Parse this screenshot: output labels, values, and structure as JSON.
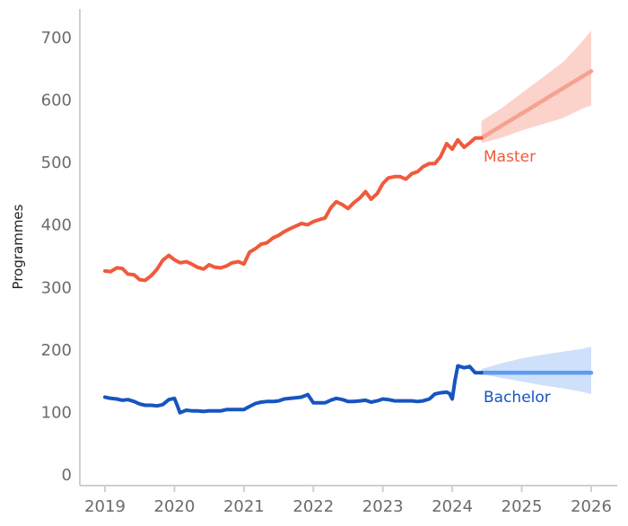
{
  "chart_data": {
    "type": "line",
    "title": "",
    "xlabel": "",
    "ylabel": "Programmes",
    "xlim": [
      2018.85,
      2026.25
    ],
    "ylim": [
      0,
      700
    ],
    "x_ticks": [
      "2019",
      "2020",
      "2021",
      "2022",
      "2023",
      "2024",
      "2025",
      "2026"
    ],
    "y_ticks": [
      "0",
      "100",
      "200",
      "300",
      "400",
      "500",
      "600",
      "700"
    ],
    "grid": false,
    "legend": "none",
    "series": [
      {
        "name": "Master",
        "color": "#f05a3c",
        "forecast_color": "#f5a290",
        "band_color": "#fbd3cb",
        "x": [
          2019.0,
          2019.08,
          2019.17,
          2019.25,
          2019.33,
          2019.42,
          2019.5,
          2019.58,
          2019.67,
          2019.75,
          2019.83,
          2019.92,
          2020.0,
          2020.08,
          2020.17,
          2020.25,
          2020.33,
          2020.42,
          2020.5,
          2020.58,
          2020.67,
          2020.75,
          2020.83,
          2020.92,
          2021.0,
          2021.08,
          2021.17,
          2021.25,
          2021.33,
          2021.42,
          2021.5,
          2021.58,
          2021.67,
          2021.75,
          2021.83,
          2021.92,
          2022.0,
          2022.08,
          2022.17,
          2022.25,
          2022.33,
          2022.42,
          2022.5,
          2022.58,
          2022.67,
          2022.75,
          2022.83,
          2022.92,
          2023.0,
          2023.08,
          2023.17,
          2023.25,
          2023.33,
          2023.42,
          2023.5,
          2023.58,
          2023.67,
          2023.75,
          2023.83,
          2023.92,
          2024.0,
          2024.08,
          2024.17,
          2024.25,
          2024.33,
          2024.42
        ],
        "values": [
          325,
          324,
          330,
          329,
          320,
          319,
          311,
          310,
          318,
          328,
          342,
          350,
          343,
          338,
          340,
          336,
          331,
          328,
          335,
          331,
          330,
          333,
          338,
          340,
          336,
          355,
          361,
          368,
          370,
          378,
          382,
          388,
          393,
          397,
          401,
          399,
          404,
          407,
          410,
          426,
          436,
          431,
          425,
          434,
          442,
          452,
          440,
          449,
          465,
          474,
          476,
          476,
          472,
          481,
          484,
          492,
          497,
          497,
          508,
          529,
          520,
          535,
          523,
          530,
          538,
          538
        ],
        "forecast": {
          "x": [
            2024.42,
            2026.0
          ],
          "values": [
            538,
            645
          ],
          "band_x": [
            2024.42,
            2024.7,
            2025.0,
            2025.3,
            2025.6,
            2025.85,
            2026.0
          ],
          "band_low": [
            530,
            538,
            550,
            560,
            570,
            584,
            590
          ],
          "band_high": [
            565,
            585,
            610,
            635,
            660,
            690,
            710
          ]
        }
      },
      {
        "name": "Bachelor",
        "color": "#1655c0",
        "forecast_color": "#5d9cf5",
        "band_color": "#cfe0fb",
        "x": [
          2019.0,
          2019.08,
          2019.17,
          2019.25,
          2019.33,
          2019.42,
          2019.5,
          2019.58,
          2019.67,
          2019.75,
          2019.83,
          2019.92,
          2020.0,
          2020.04,
          2020.08,
          2020.17,
          2020.25,
          2020.33,
          2020.42,
          2020.5,
          2020.58,
          2020.67,
          2020.75,
          2020.83,
          2020.92,
          2021.0,
          2021.08,
          2021.17,
          2021.25,
          2021.33,
          2021.42,
          2021.5,
          2021.58,
          2021.67,
          2021.75,
          2021.83,
          2021.92,
          2022.0,
          2022.08,
          2022.17,
          2022.25,
          2022.33,
          2022.42,
          2022.5,
          2022.58,
          2022.67,
          2022.75,
          2022.83,
          2022.92,
          2023.0,
          2023.08,
          2023.17,
          2023.25,
          2023.33,
          2023.42,
          2023.5,
          2023.58,
          2023.67,
          2023.75,
          2023.83,
          2023.92,
          2023.96,
          2024.0,
          2024.04,
          2024.08,
          2024.17,
          2024.25,
          2024.33,
          2024.42
        ],
        "values": [
          123,
          121,
          120,
          118,
          119,
          116,
          112,
          110,
          110,
          109,
          111,
          119,
          121,
          110,
          98,
          102,
          101,
          101,
          100,
          101,
          101,
          101,
          103,
          103,
          103,
          103,
          108,
          113,
          115,
          116,
          116,
          117,
          120,
          121,
          122,
          123,
          127,
          114,
          114,
          114,
          118,
          121,
          119,
          116,
          116,
          117,
          118,
          115,
          117,
          120,
          119,
          117,
          117,
          117,
          117,
          116,
          117,
          120,
          128,
          130,
          131,
          129,
          120,
          150,
          173,
          170,
          172,
          162,
          162
        ],
        "forecast": {
          "x": [
            2024.42,
            2026.0
          ],
          "values": [
            162,
            162
          ],
          "band_x": [
            2024.42,
            2024.7,
            2025.0,
            2025.3,
            2025.6,
            2025.85,
            2026.0
          ],
          "band_low": [
            160,
            154,
            148,
            142,
            137,
            132,
            128
          ],
          "band_high": [
            168,
            177,
            185,
            191,
            196,
            200,
            204
          ]
        }
      }
    ]
  }
}
